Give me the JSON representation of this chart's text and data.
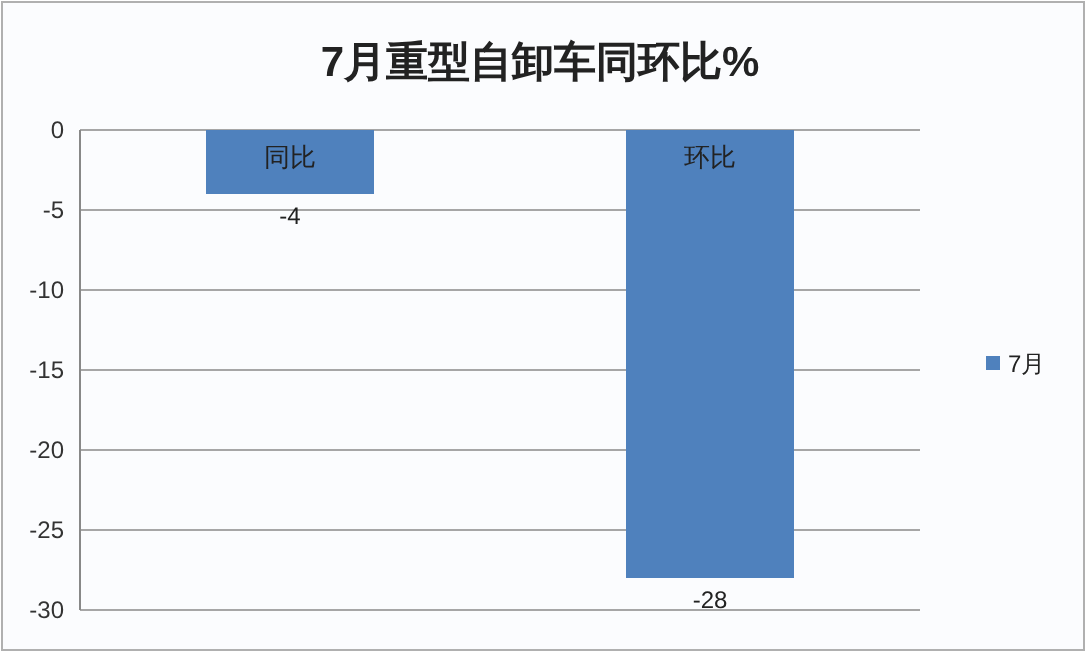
{
  "chart_data": {
    "type": "bar",
    "title": "7月重型自卸车同环比%",
    "categories": [
      "同比",
      "环比"
    ],
    "series": [
      {
        "name": "7月",
        "color": "#4f81bd",
        "values": [
          -4,
          -28
        ]
      }
    ],
    "ylim": [
      -30,
      0
    ],
    "yticks": [
      0,
      -5,
      -10,
      -15,
      -20,
      -25,
      -30
    ],
    "grid": "y",
    "legend": "right",
    "data_labels": true
  }
}
